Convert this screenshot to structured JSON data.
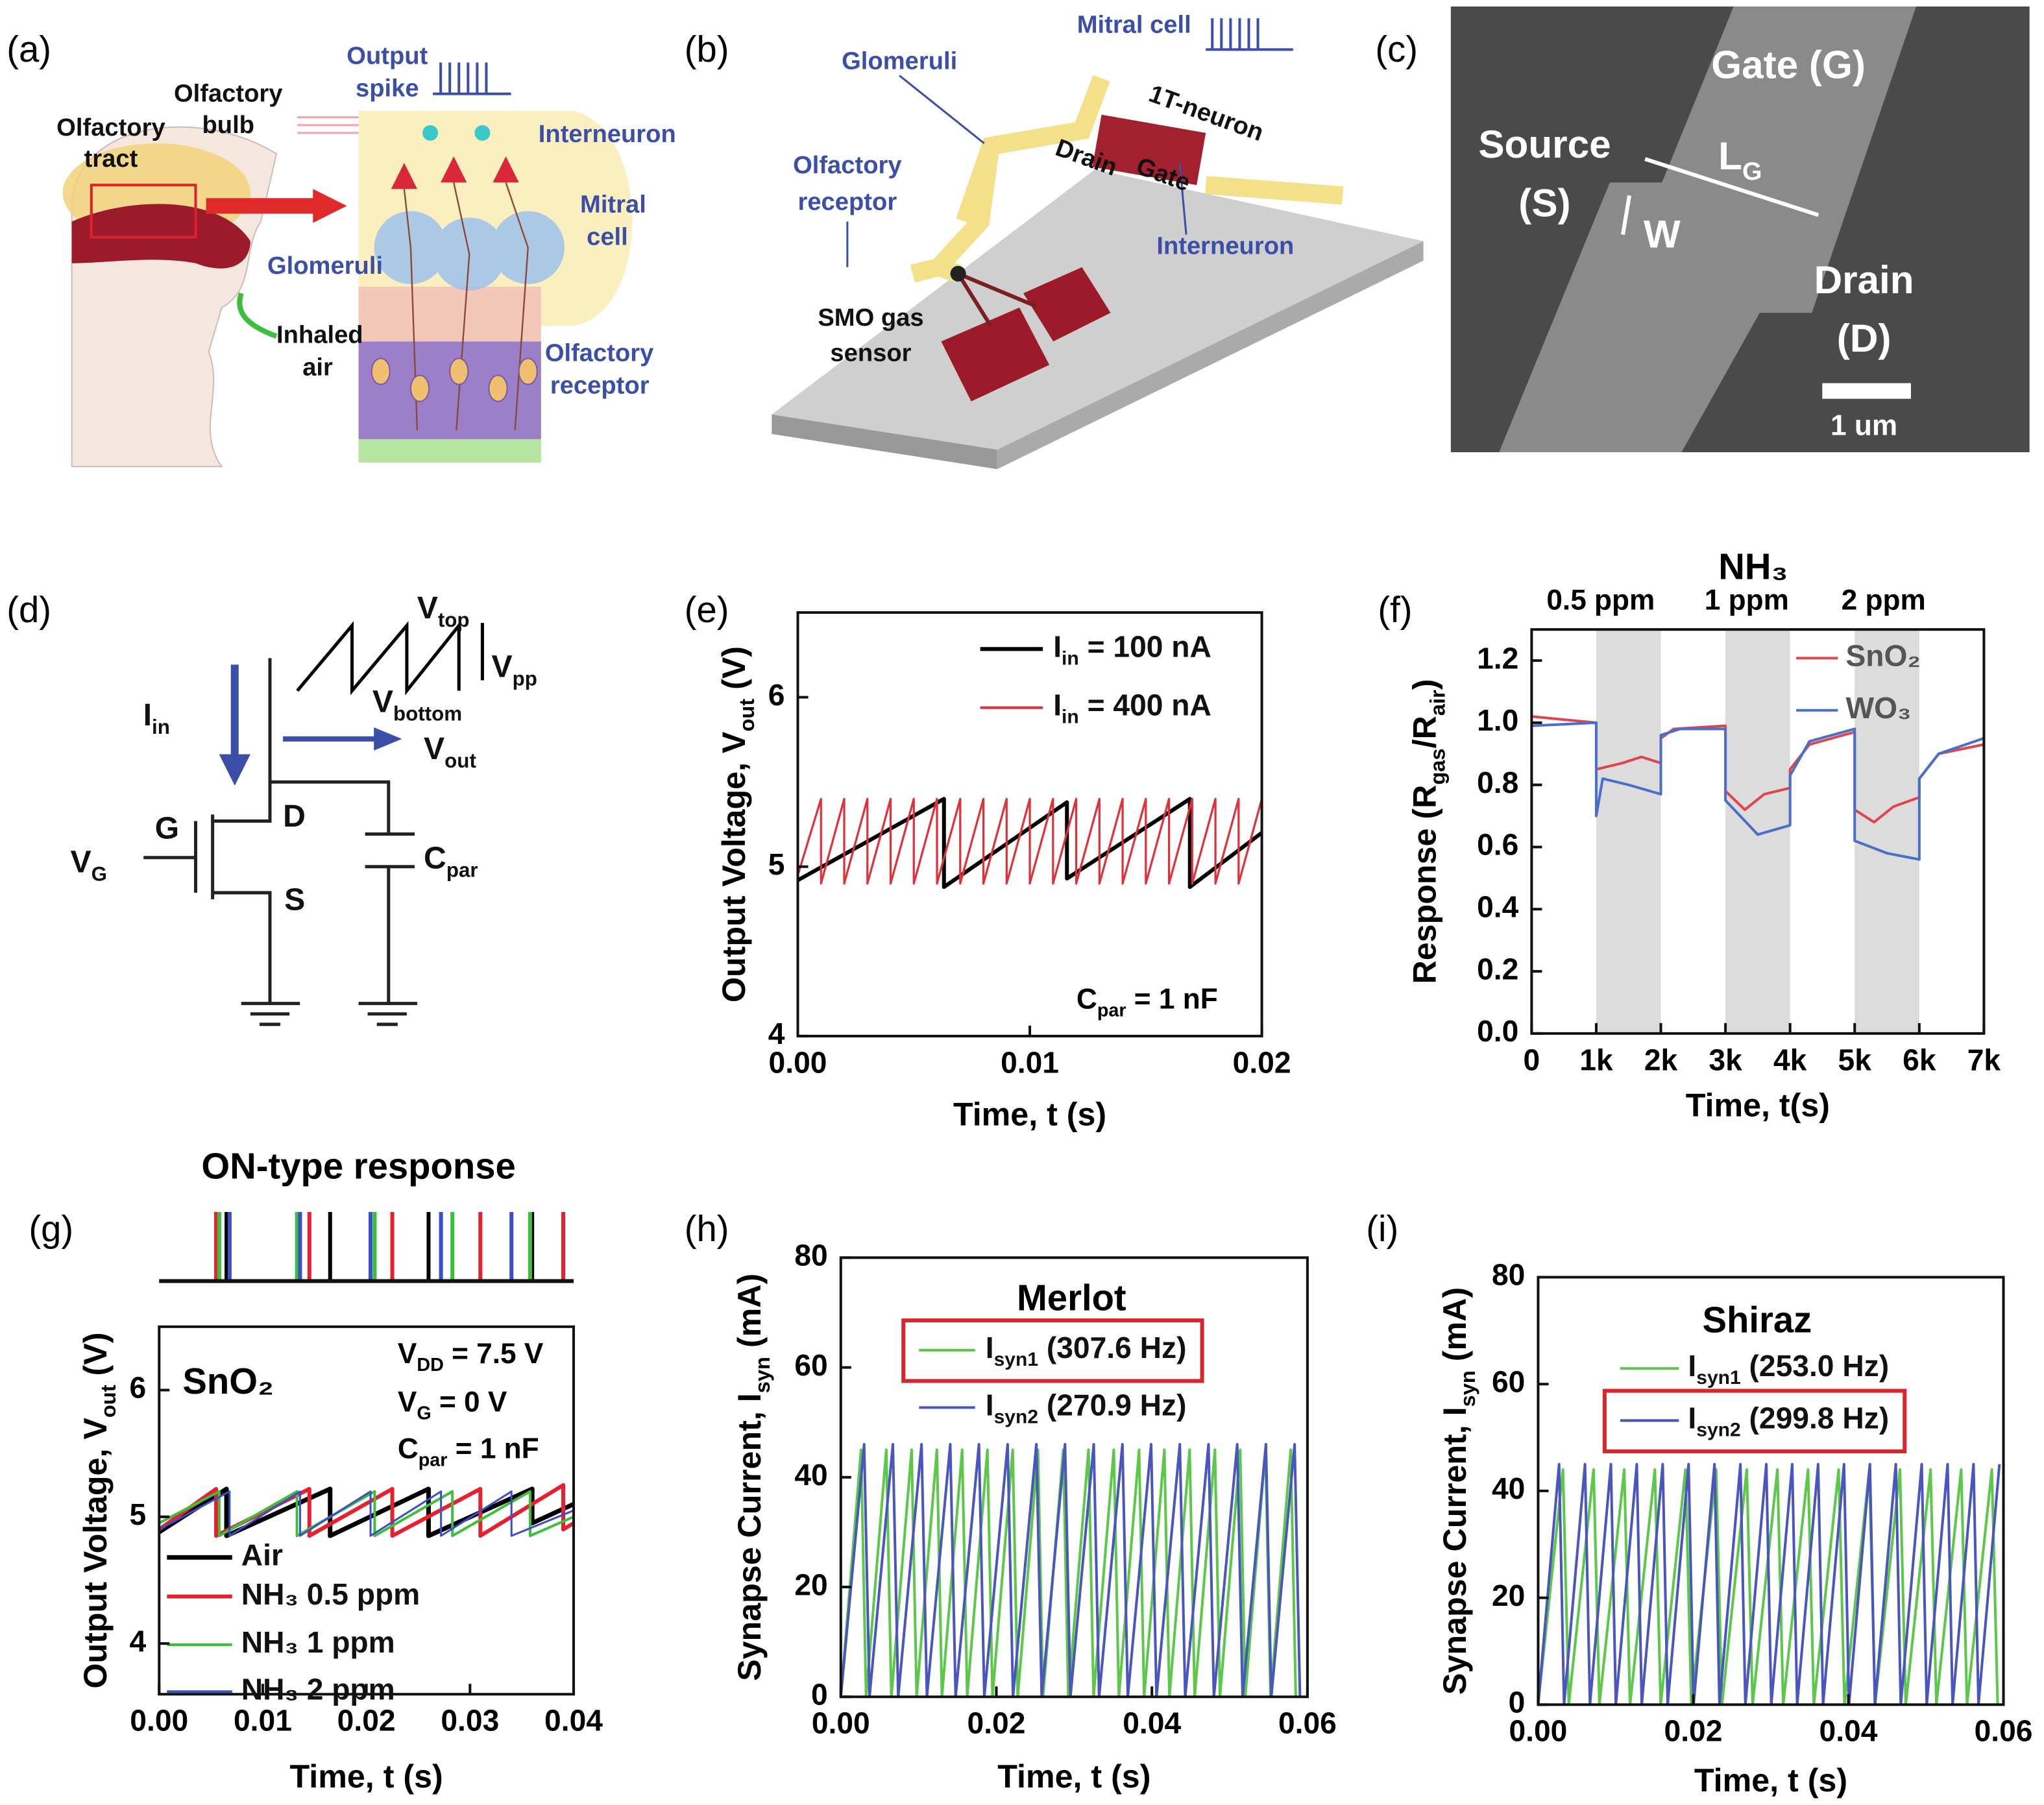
{
  "panels": {
    "a": {
      "label": "(a)",
      "texts": [
        "Output",
        "spike",
        "Olfactory",
        "bulb",
        "Olfactory",
        "tract",
        "Interneuron",
        "Mitral",
        "cell",
        "Glomeruli",
        "Inhaled",
        "air",
        "Olfactory",
        "receptor"
      ]
    },
    "b": {
      "label": "(b)",
      "texts": [
        "Mitral cell",
        "Glomeruli",
        "1T-neuron",
        "Drain",
        "Gate",
        "Olfactory",
        "receptor",
        "Interneuron",
        "SMO gas",
        "sensor"
      ]
    },
    "c": {
      "label": "(c)",
      "texts": [
        "Gate (G)",
        "Source",
        "(S)",
        [
          "L",
          "G"
        ],
        "W",
        "Drain",
        "(D)",
        "1 um"
      ]
    },
    "d": {
      "label": "(d)",
      "texts": [
        [
          "I",
          "in"
        ],
        [
          "V",
          "top"
        ],
        [
          "V",
          "pp"
        ],
        [
          "V",
          "bottom"
        ],
        [
          "V",
          "out"
        ],
        "G",
        "D",
        [
          "V",
          "G"
        ],
        [
          "C",
          "par"
        ],
        "S"
      ]
    }
  },
  "chart_data": [
    {
      "type": "line",
      "panel": "(e)",
      "y_label": [
        "Output Voltage, V",
        "out",
        " (V)"
      ],
      "x_label": "Time, t (s)",
      "xlim": [
        0,
        0.02
      ],
      "xticks": [
        {
          "value": 0,
          "label": "0.00"
        },
        0.01,
        0.02
      ],
      "ylim": [
        4,
        6.5
      ],
      "yticks": [
        4,
        5,
        6
      ],
      "annotations": [
        [
          "C",
          "par",
          " = 1 nF"
        ]
      ],
      "series": [
        {
          "name": [
            "I",
            "in",
            " = 100 nA"
          ],
          "color": "#000000",
          "x": [
            0,
            0.0063,
            0.0063,
            0.0116,
            0.0116,
            0.0169,
            0.0169,
            0.02
          ],
          "values": [
            4.92,
            5.4,
            4.88,
            5.38,
            4.93,
            5.4,
            4.88,
            5.2
          ]
        },
        {
          "name": [
            "I",
            "in",
            " = 400 nA"
          ],
          "color": "#e0303a",
          "x": [
            0,
            0.001,
            0.001,
            0.002,
            0.002,
            0.003,
            0.003,
            0.004,
            0.004,
            0.005,
            0.005,
            0.006,
            0.006,
            0.007,
            0.007,
            0.008,
            0.008,
            0.009,
            0.009,
            0.01,
            0.01,
            0.011,
            0.011,
            0.012,
            0.012,
            0.013,
            0.013,
            0.014,
            0.014,
            0.015,
            0.015,
            0.016,
            0.016,
            0.017,
            0.017,
            0.018,
            0.018,
            0.019,
            0.019,
            0.02
          ],
          "values": [
            4.95,
            5.4,
            4.9,
            5.4,
            4.9,
            5.4,
            4.9,
            5.4,
            4.9,
            5.4,
            4.9,
            5.4,
            4.9,
            5.4,
            4.9,
            5.4,
            4.9,
            5.4,
            4.9,
            5.4,
            4.9,
            5.4,
            4.9,
            5.4,
            4.9,
            5.4,
            4.9,
            5.4,
            4.9,
            5.4,
            4.9,
            5.4,
            4.9,
            5.4,
            4.9,
            5.4,
            4.9,
            5.4,
            4.9,
            5.4
          ]
        }
      ]
    },
    {
      "type": "line",
      "panel": "(f)",
      "title": "NH₃",
      "y_label": [
        "Response (R",
        "gas",
        "/R",
        "air",
        ")"
      ],
      "x_label": "Time, t(s)",
      "xlim": [
        0,
        7000
      ],
      "xticks": [
        0,
        {
          "value": 1000,
          "label": "1k"
        },
        {
          "value": 2000,
          "label": "2k"
        },
        {
          "value": 3000,
          "label": "3k"
        },
        {
          "value": 4000,
          "label": "4k"
        },
        {
          "value": 5000,
          "label": "5k"
        },
        {
          "value": 6000,
          "label": "6k"
        },
        {
          "value": 7000,
          "label": "7k"
        }
      ],
      "ylim": [
        0,
        1.3
      ],
      "yticks": [
        {
          "value": 0,
          "label": "0.0"
        },
        0.2,
        0.4,
        0.6,
        0.8,
        {
          "value": 1,
          "label": "1.0"
        },
        1.2
      ],
      "shaded": [
        [
          1000,
          2000
        ],
        [
          3000,
          4000
        ],
        [
          5000,
          6000
        ]
      ],
      "shade_color": "#dcdcdc",
      "annotations": [
        "0.5 ppm",
        "1 ppm",
        "2 ppm"
      ],
      "series": [
        {
          "name": "SnO₂",
          "color": "#e0454f",
          "x": [
            0,
            1000,
            1000,
            1400,
            1700,
            2000,
            2000,
            2200,
            3000,
            3000,
            3300,
            3600,
            4000,
            4000,
            4300,
            5000,
            5000,
            5300,
            5600,
            6000,
            6000,
            6300,
            7000
          ],
          "values": [
            1.02,
            1.0,
            0.85,
            0.87,
            0.89,
            0.87,
            0.95,
            0.98,
            0.99,
            0.78,
            0.72,
            0.77,
            0.79,
            0.85,
            0.93,
            0.97,
            0.72,
            0.68,
            0.73,
            0.76,
            0.82,
            0.9,
            0.93
          ]
        },
        {
          "name": "WO₃",
          "color": "#4a6fc9",
          "x": [
            0,
            1000,
            1000,
            1100,
            1500,
            2000,
            2000,
            2300,
            3000,
            3000,
            3500,
            4000,
            4000,
            4300,
            5000,
            5000,
            5500,
            6000,
            6000,
            6300,
            7000
          ],
          "values": [
            0.99,
            1.0,
            0.7,
            0.82,
            0.8,
            0.77,
            0.96,
            0.98,
            0.98,
            0.75,
            0.64,
            0.67,
            0.83,
            0.94,
            0.98,
            0.62,
            0.58,
            0.56,
            0.82,
            0.9,
            0.95
          ]
        }
      ]
    },
    {
      "type": "line",
      "panel": "(g)",
      "title": "ON-type response",
      "y_label": [
        "Output Voltage, V",
        "out",
        " (V)"
      ],
      "x_label": "Time, t (s)",
      "xlim": [
        0,
        0.04
      ],
      "xticks": [
        {
          "value": 0,
          "label": "0.00"
        },
        0.01,
        0.02,
        0.03,
        0.04
      ],
      "ylim": [
        3.6,
        6.5
      ],
      "yticks": [
        4,
        5,
        6
      ],
      "annotations": [
        "SnO₂",
        [
          "V",
          "DD",
          " = 7.5 V"
        ],
        [
          "V",
          "G",
          " = 0 V"
        ],
        [
          "C",
          "par",
          " = 1 nF"
        ]
      ],
      "series": [
        {
          "name": "Air",
          "color": "#000000",
          "x": [
            0,
            0.0065,
            0.0065,
            0.0165,
            0.0165,
            0.026,
            0.026,
            0.036,
            0.036,
            0.04
          ],
          "values": [
            4.88,
            5.22,
            4.85,
            5.22,
            4.85,
            5.22,
            4.85,
            5.22,
            4.95,
            5.1
          ],
          "spikes": [
            0.0065,
            0.0165,
            0.026,
            0.036
          ]
        },
        {
          "name": "NH₃ 0.5 ppm",
          "color": "#e8202e",
          "x": [
            0,
            0.0055,
            0.0055,
            0.0145,
            0.0145,
            0.0225,
            0.0225,
            0.031,
            0.031,
            0.039,
            0.039,
            0.04
          ],
          "values": [
            4.9,
            5.22,
            4.85,
            5.22,
            4.85,
            5.22,
            4.85,
            5.22,
            4.85,
            5.25,
            4.9,
            4.95
          ],
          "spikes": [
            0.0055,
            0.0145,
            0.0225,
            0.031,
            0.039
          ]
        },
        {
          "name": "NH₃ 1 ppm",
          "color": "#3cbf3c",
          "x": [
            0,
            0.0058,
            0.0058,
            0.0133,
            0.0133,
            0.0208,
            0.0208,
            0.0283,
            0.0283,
            0.0358,
            0.0358,
            0.04
          ],
          "values": [
            4.95,
            5.2,
            4.85,
            5.2,
            4.85,
            5.2,
            4.85,
            5.2,
            4.85,
            5.2,
            4.85,
            5.0
          ],
          "spikes": [
            0.0058,
            0.0133,
            0.0208,
            0.0283,
            0.0358
          ]
        },
        {
          "name": "NH₃ 2 ppm",
          "color": "#3a4fc8",
          "x": [
            0,
            0.0068,
            0.0068,
            0.0136,
            0.0136,
            0.0204,
            0.0204,
            0.0272,
            0.0272,
            0.034,
            0.034,
            0.04
          ],
          "values": [
            4.9,
            5.2,
            4.85,
            5.2,
            4.85,
            5.2,
            4.85,
            5.2,
            4.85,
            5.2,
            4.85,
            5.05
          ],
          "spikes": [
            0.0068,
            0.0136,
            0.0204,
            0.0272,
            0.034
          ]
        }
      ]
    },
    {
      "type": "line",
      "panel": "(h)",
      "title": "Merlot",
      "y_label": [
        "Synapse Current, I",
        "syn",
        " (mA)"
      ],
      "x_label": "Time, t (s)",
      "xlim": [
        0,
        0.06
      ],
      "xticks": [
        {
          "value": 0,
          "label": "0.00"
        },
        0.02,
        0.04,
        0.06
      ],
      "ylim": [
        0,
        80
      ],
      "yticks": [
        0,
        20,
        40,
        60,
        80
      ],
      "highlight": 0,
      "highlight_color": "#d9262e",
      "series": [
        {
          "name": [
            "I",
            "syn1",
            " (307.6 Hz)"
          ],
          "color": "#5cc84a",
          "x": [
            0,
            0.0026,
            0.00325,
            0.00585,
            0.0065,
            0.0091,
            0.00975,
            0.01235,
            0.013,
            0.0156,
            0.01625,
            0.01885,
            0.0195,
            0.0221,
            0.02275,
            0.02535,
            0.026,
            0.0286,
            0.02925,
            0.03185,
            0.0325,
            0.0351,
            0.03575,
            0.03835,
            0.039,
            0.0416,
            0.04225,
            0.04485,
            0.0455,
            0.0481,
            0.04875,
            0.05135,
            0.052,
            0.0546,
            0.05525,
            0.05785,
            0.0585
          ],
          "values": [
            0,
            45,
            0,
            45,
            0,
            45,
            0,
            45,
            0,
            45,
            0,
            45,
            0,
            45,
            0,
            45,
            0,
            45,
            0,
            45,
            0,
            45,
            0,
            45,
            0,
            45,
            0,
            45,
            0,
            45,
            0,
            45,
            0,
            45,
            0,
            45,
            0
          ]
        },
        {
          "name": [
            "I",
            "syn2",
            " (270.9 Hz)"
          ],
          "color": "#4a55c0",
          "x": [
            0,
            0.003,
            0.00369,
            0.00669,
            0.00738,
            0.01038,
            0.01107,
            0.01407,
            0.01476,
            0.01776,
            0.01845,
            0.02145,
            0.02214,
            0.02514,
            0.02583,
            0.02883,
            0.02952,
            0.03252,
            0.03321,
            0.03621,
            0.0369,
            0.0399,
            0.04059,
            0.04359,
            0.04428,
            0.04728,
            0.04797,
            0.05097,
            0.05166,
            0.05466,
            0.05535,
            0.05835,
            0.05904
          ],
          "values": [
            0,
            46,
            0,
            46,
            0,
            46,
            0,
            46,
            0,
            46,
            0,
            46,
            0,
            46,
            0,
            46,
            0,
            46,
            0,
            46,
            0,
            46,
            0,
            46,
            0,
            46,
            0,
            46,
            0,
            46,
            0,
            46,
            0
          ]
        }
      ]
    },
    {
      "type": "line",
      "panel": "(i)",
      "title": "Shiraz",
      "y_label": [
        "Synapse Current, I",
        "syn",
        " (mA)"
      ],
      "x_label": "Time, t (s)",
      "xlim": [
        0,
        0.06
      ],
      "xticks": [
        {
          "value": 0,
          "label": "0.00"
        },
        0.02,
        0.04,
        0.06
      ],
      "ylim": [
        0,
        80
      ],
      "yticks": [
        0,
        20,
        40,
        60,
        80
      ],
      "highlight": 1,
      "highlight_color": "#d9262e",
      "series": [
        {
          "name": [
            "I",
            "syn1",
            " (253.0 Hz)"
          ],
          "color": "#5cc84a",
          "x": [
            0,
            0.0032,
            0.00395,
            0.00715,
            0.0079,
            0.0111,
            0.01185,
            0.01505,
            0.0158,
            0.019,
            0.01975,
            0.02295,
            0.0237,
            0.0269,
            0.02765,
            0.03085,
            0.0316,
            0.0348,
            0.03555,
            0.03875,
            0.0395,
            0.0427,
            0.04345,
            0.04665,
            0.0474,
            0.0506,
            0.05135,
            0.05455,
            0.0553,
            0.0585,
            0.05925
          ],
          "values": [
            0,
            44,
            0,
            44,
            0,
            44,
            0,
            44,
            0,
            44,
            0,
            44,
            0,
            44,
            0,
            44,
            0,
            44,
            0,
            44,
            0,
            44,
            0,
            44,
            0,
            44,
            0,
            44,
            0,
            44,
            0
          ]
        },
        {
          "name": [
            "I",
            "syn2",
            " (299.8 Hz)"
          ],
          "color": "#4a55c0",
          "x": [
            0,
            0.0027,
            0.00334,
            0.00604,
            0.00668,
            0.00938,
            0.01002,
            0.01272,
            0.01336,
            0.01606,
            0.0167,
            0.0194,
            0.02004,
            0.02274,
            0.02338,
            0.02608,
            0.02672,
            0.02942,
            0.03006,
            0.03276,
            0.0334,
            0.0361,
            0.03674,
            0.03944,
            0.04008,
            0.04278,
            0.04342,
            0.04612,
            0.04676,
            0.04946,
            0.0501,
            0.0528,
            0.05344,
            0.05614,
            0.05678,
            0.05948
          ],
          "values": [
            0,
            45,
            0,
            45,
            0,
            45,
            0,
            45,
            0,
            45,
            0,
            45,
            0,
            45,
            0,
            45,
            0,
            45,
            0,
            45,
            0,
            45,
            0,
            45,
            0,
            45,
            0,
            45,
            0,
            45,
            0,
            45,
            0,
            45,
            0,
            45
          ]
        }
      ]
    }
  ]
}
